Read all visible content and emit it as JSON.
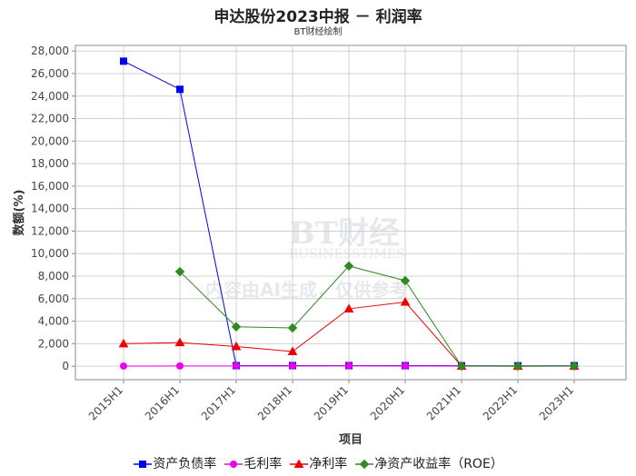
{
  "header": {
    "title": "申达股份2023中报 － 利润率",
    "subtitle": "BT财经绘制"
  },
  "watermark": {
    "brand": "BT财经",
    "brand_en": "BUSINESSTIMES",
    "note": "内容由AI生成，仅供参考"
  },
  "chart_data": {
    "type": "line",
    "xlabel": "项目",
    "ylabel": "数额(%)",
    "categories": [
      "2015H1",
      "2016H1",
      "2017H1",
      "2018H1",
      "2019H1",
      "2020H1",
      "2021H1",
      "2022H1",
      "2023H1"
    ],
    "ylim": [
      -1200,
      28500
    ],
    "yticks": [
      0,
      2000,
      4000,
      6000,
      8000,
      10000,
      12000,
      14000,
      16000,
      18000,
      20000,
      22000,
      24000,
      26000,
      28000
    ],
    "ytick_labels": [
      "0",
      "2,000",
      "4,000",
      "6,000",
      "8,000",
      "10,000",
      "12,000",
      "14,000",
      "16,000",
      "18,000",
      "20,000",
      "22,000",
      "24,000",
      "26,000",
      "28,000"
    ],
    "grid": true,
    "legend_position": "bottom",
    "series": [
      {
        "name": "资产负债率",
        "color": "#0000ee",
        "marker": "square",
        "values": [
          27100,
          24600,
          50,
          55,
          55,
          50,
          40,
          35,
          45
        ]
      },
      {
        "name": "毛利率",
        "color": "#ee00ee",
        "marker": "circle",
        "values": [
          15,
          20,
          25,
          25,
          30,
          25,
          15,
          10,
          10
        ]
      },
      {
        "name": "净利率",
        "color": "#ee0000",
        "marker": "triangle",
        "values": [
          2000,
          2100,
          1750,
          1300,
          5100,
          5700,
          10,
          5,
          10
        ]
      },
      {
        "name": "净资产收益率（ROE）",
        "color": "#2e8b1e",
        "marker": "diamond",
        "values": [
          null,
          8400,
          3500,
          3400,
          8900,
          7600,
          10,
          5,
          10
        ]
      }
    ]
  }
}
